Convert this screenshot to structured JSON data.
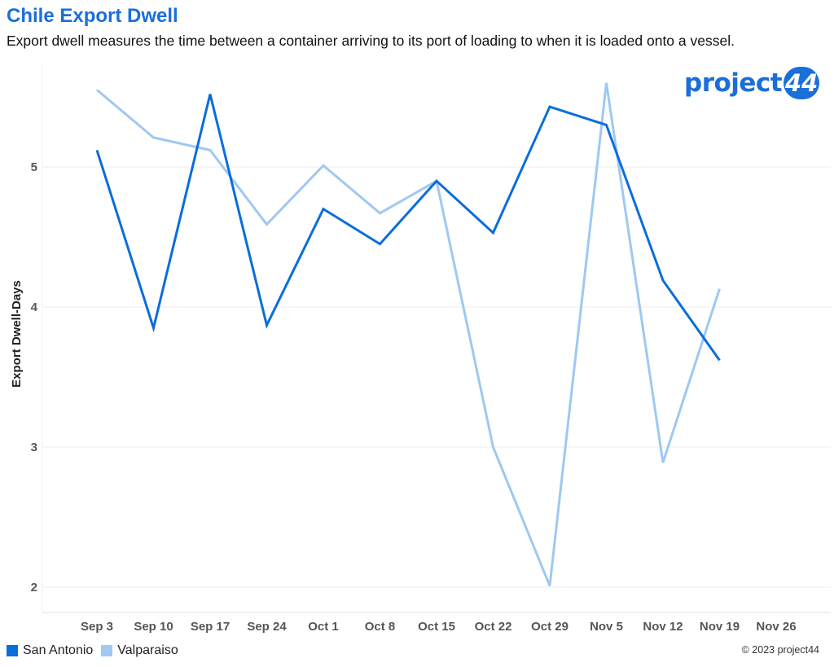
{
  "header": {
    "title": "Chile Export Dwell",
    "subtitle": "Export dwell measures the time between a container arriving to its port of loading to when it is loaded onto a vessel."
  },
  "logo": {
    "word": "project",
    "badge": "44"
  },
  "footer": {
    "copyright": "© 2023 project44"
  },
  "colors": {
    "san_antonio": "#0a6ddb",
    "valparaiso": "#9fc8f2",
    "title": "#1a6fd8"
  },
  "chart_data": {
    "type": "line",
    "categories": [
      "Sep 3",
      "Sep 10",
      "Sep 17",
      "Sep 24",
      "Oct 1",
      "Oct 8",
      "Oct 15",
      "Oct 22",
      "Oct 29",
      "Nov 5",
      "Nov 12",
      "Nov 19",
      "Nov 26"
    ],
    "series": [
      {
        "name": "San Antonio",
        "color": "#0a6ddb",
        "values": [
          5.12,
          3.85,
          5.52,
          3.87,
          4.7,
          4.45,
          4.9,
          4.53,
          5.43,
          5.3,
          4.19,
          3.62,
          null
        ]
      },
      {
        "name": "Valparaiso",
        "color": "#9fc8f2",
        "values": [
          5.55,
          5.21,
          5.12,
          4.59,
          5.01,
          4.67,
          4.9,
          3.0,
          2.01,
          5.6,
          2.89,
          4.13,
          null
        ]
      }
    ],
    "ylabel": "Export Dwell-Days",
    "xlabel": "",
    "yticks": [
      2,
      3,
      4,
      5
    ],
    "ylim": [
      1.8,
      5.9
    ],
    "grid": true,
    "legend": "bottom-left"
  }
}
